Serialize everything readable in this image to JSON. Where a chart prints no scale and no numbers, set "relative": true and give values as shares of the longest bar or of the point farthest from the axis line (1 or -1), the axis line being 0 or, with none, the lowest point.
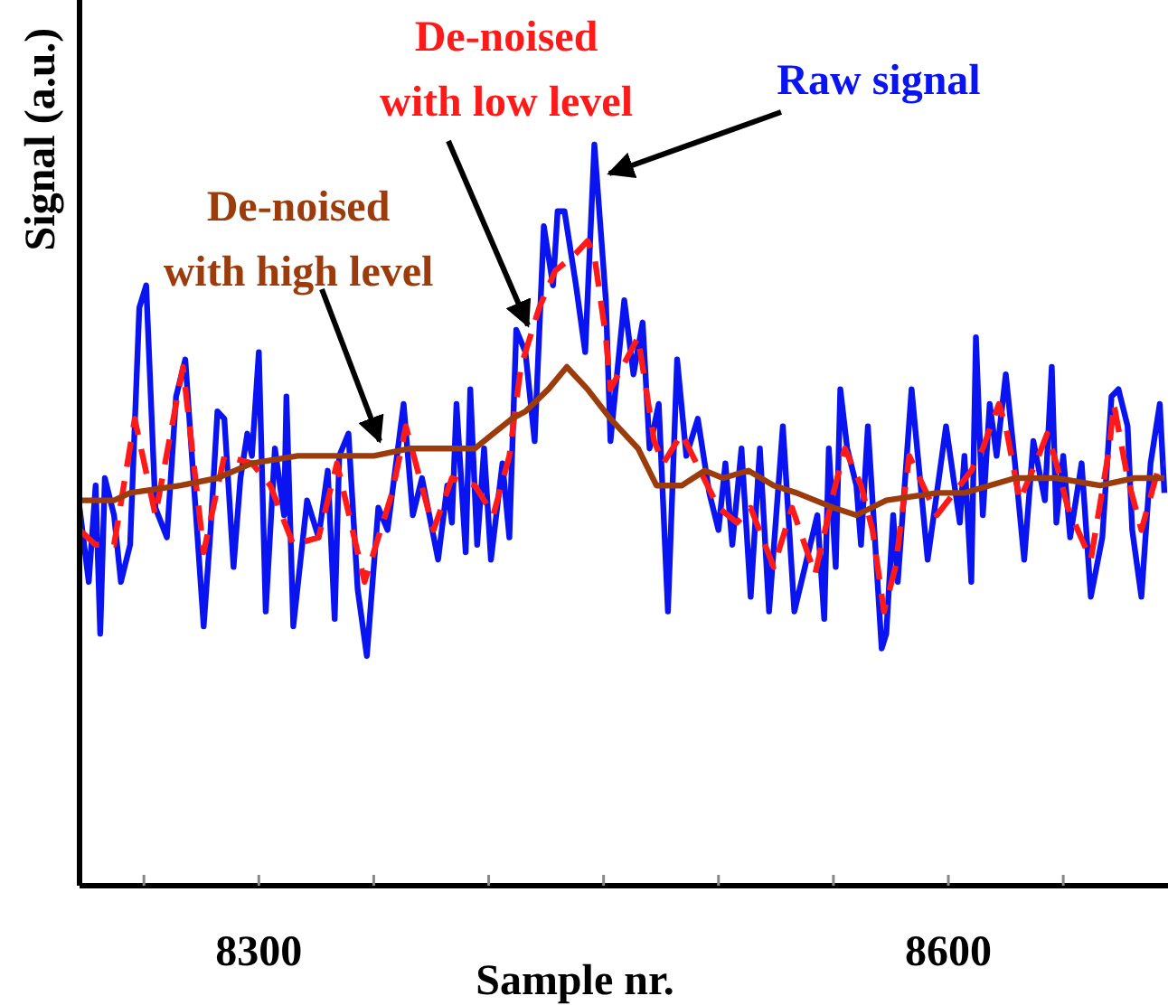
{
  "chart_data": {
    "type": "line",
    "relative": true,
    "xlabel": "Sample nr.",
    "ylabel": "Signal (a.u.)",
    "xlim": [
      8222,
      8694
    ],
    "xticks": [
      {
        "value": 8250,
        "label": null
      },
      8300,
      {
        "value": 8350,
        "label": null
      },
      {
        "value": 8400,
        "label": null
      },
      {
        "value": 8450,
        "label": null
      },
      {
        "value": 8500,
        "label": null
      },
      {
        "value": 8550,
        "label": null
      },
      8600,
      {
        "value": 8650,
        "label": null
      }
    ],
    "grid": false,
    "marker": "none",
    "series": [
      {
        "name": "Raw signal",
        "color": "#0a14f0",
        "line_style": "solid",
        "x": [
          8222,
          8226,
          8229,
          8231,
          8233,
          8237,
          8240,
          8244,
          8248,
          8251,
          8255,
          8260,
          8264,
          8268,
          8272,
          8276,
          8279,
          8282,
          8285,
          8289,
          8292,
          8295,
          8297,
          8300,
          8303,
          8307,
          8311,
          8312,
          8315,
          8321,
          8326,
          8330,
          8333,
          8335,
          8339,
          8343,
          8347,
          8352,
          8356,
          8363,
          8367,
          8371,
          8378,
          8382,
          8384,
          8386,
          8390,
          8392,
          8395,
          8398,
          8401,
          8406,
          8409,
          8412,
          8416,
          8420,
          8424,
          8428,
          8430,
          8433,
          8438,
          8442,
          8446,
          8451,
          8453,
          8459,
          8463,
          8467,
          8470,
          8474,
          8478,
          8482,
          8486,
          8491,
          8496,
          8500,
          8503,
          8506,
          8510,
          8514,
          8518,
          8522,
          8528,
          8533,
          8543,
          8546,
          8548,
          8551,
          8553,
          8556,
          8560,
          8562,
          8565,
          8571,
          8573,
          8576,
          8578,
          8584,
          8591,
          8599,
          8605,
          8607,
          8610,
          8612,
          8615,
          8618,
          8621,
          8625,
          8629,
          8633,
          8637,
          8642,
          8645,
          8647,
          8650,
          8653,
          8658,
          8662,
          8667,
          8671,
          8674,
          8678,
          8680,
          8684,
          8688,
          8692,
          8694
        ],
        "values": [
          0.51,
          0.41,
          0.54,
          0.34,
          0.55,
          0.5,
          0.41,
          0.46,
          0.78,
          0.81,
          0.51,
          0.47,
          0.66,
          0.71,
          0.53,
          0.35,
          0.48,
          0.64,
          0.63,
          0.43,
          0.55,
          0.61,
          0.58,
          0.72,
          0.37,
          0.59,
          0.5,
          0.66,
          0.35,
          0.52,
          0.47,
          0.56,
          0.36,
          0.58,
          0.61,
          0.4,
          0.31,
          0.51,
          0.48,
          0.65,
          0.5,
          0.55,
          0.44,
          0.54,
          0.49,
          0.65,
          0.45,
          0.67,
          0.46,
          0.59,
          0.44,
          0.57,
          0.47,
          0.75,
          0.72,
          0.6,
          0.89,
          0.81,
          0.91,
          0.91,
          0.81,
          0.72,
          1,
          0.79,
          0.6,
          0.79,
          0.69,
          0.76,
          0.59,
          0.65,
          0.37,
          0.71,
          0.58,
          0.63,
          0.53,
          0.48,
          0.57,
          0.46,
          0.59,
          0.39,
          0.59,
          0.37,
          0.62,
          0.37,
          0.5,
          0.36,
          0.59,
          0.43,
          0.67,
          0.59,
          0.54,
          0.46,
          0.62,
          0.32,
          0.34,
          0.5,
          0.41,
          0.67,
          0.44,
          0.62,
          0.49,
          0.58,
          0.41,
          0.74,
          0.5,
          0.65,
          0.58,
          0.69,
          0.57,
          0.44,
          0.6,
          0.52,
          0.7,
          0.49,
          0.58,
          0.47,
          0.57,
          0.39,
          0.47,
          0.66,
          0.67,
          0.62,
          0.48,
          0.39,
          0.57,
          0.65,
          0.53
        ]
      },
      {
        "name": "De-noised with low level",
        "color": "#ff1a1a",
        "line_style": "dashed",
        "x": [
          8222,
          8229,
          8237,
          8246,
          8255,
          8267,
          8276,
          8285,
          8297,
          8305,
          8315,
          8326,
          8334,
          8346,
          8358,
          8364,
          8376,
          8384,
          8394,
          8402,
          8409,
          8414,
          8422,
          8429,
          8437,
          8443,
          8446,
          8451,
          8453,
          8465,
          8472,
          8476,
          8484,
          8500,
          8508,
          8514,
          8524,
          8532,
          8542,
          8550,
          8555,
          8562,
          8567,
          8572,
          8577,
          8583,
          8595,
          8610,
          8615,
          8622,
          8625,
          8631,
          8638,
          8643,
          8647,
          8652,
          8662,
          8670,
          8672,
          8678,
          8684,
          8692,
          8694
        ],
        "values": [
          0.48,
          0.46,
          0.46,
          0.63,
          0.5,
          0.7,
          0.45,
          0.58,
          0.57,
          0.54,
          0.46,
          0.47,
          0.57,
          0.41,
          0.53,
          0.62,
          0.48,
          0.55,
          0.54,
          0.5,
          0.58,
          0.7,
          0.78,
          0.83,
          0.85,
          0.87,
          0.85,
          0.74,
          0.67,
          0.74,
          0.6,
          0.57,
          0.61,
          0.51,
          0.49,
          0.51,
          0.43,
          0.51,
          0.42,
          0.53,
          0.59,
          0.54,
          0.48,
          0.37,
          0.43,
          0.58,
          0.5,
          0.56,
          0.59,
          0.65,
          0.62,
          0.52,
          0.57,
          0.61,
          0.57,
          0.51,
          0.44,
          0.59,
          0.65,
          0.55,
          0.48,
          0.57,
          0.57
        ]
      },
      {
        "name": "De-noised with high level",
        "color": "#9c3c0c",
        "line_style": "solid",
        "x": [
          8222,
          8237,
          8244,
          8266,
          8282,
          8297,
          8317,
          8334,
          8350,
          8366,
          8384,
          8394,
          8402,
          8410,
          8416,
          8426,
          8434,
          8443,
          8453,
          8465,
          8473,
          8484,
          8494,
          8502,
          8513,
          8524,
          8534,
          8550,
          8560,
          8573,
          8595,
          8607,
          8629,
          8647,
          8666,
          8681,
          8694
        ],
        "values": [
          0.52,
          0.52,
          0.53,
          0.54,
          0.55,
          0.57,
          0.58,
          0.58,
          0.58,
          0.59,
          0.59,
          0.59,
          0.61,
          0.63,
          0.64,
          0.67,
          0.7,
          0.67,
          0.63,
          0.59,
          0.54,
          0.54,
          0.56,
          0.55,
          0.56,
          0.54,
          0.53,
          0.51,
          0.5,
          0.52,
          0.53,
          0.53,
          0.55,
          0.55,
          0.54,
          0.55,
          0.55
        ]
      }
    ]
  }
}
